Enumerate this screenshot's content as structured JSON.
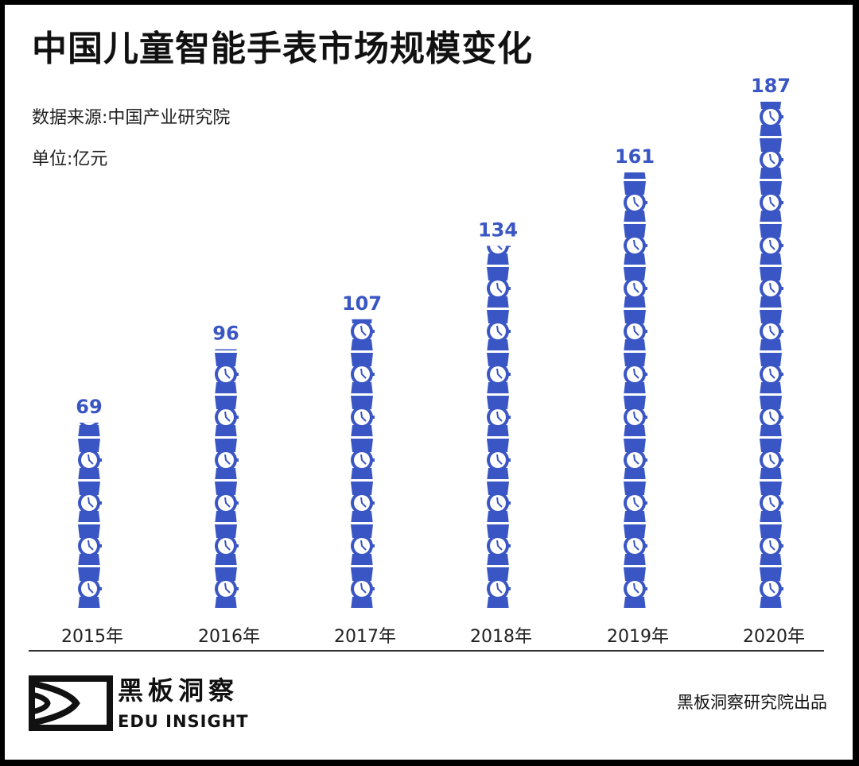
{
  "chart_data": {
    "type": "bar",
    "title": "中国儿童智能手表市场规模变化",
    "source": "数据来源:中国产业研究院",
    "unit": "单位:亿元",
    "categories": [
      "2015年",
      "2016年",
      "2017年",
      "2018年",
      "2019年",
      "2020年"
    ],
    "values": [
      69,
      96,
      107,
      134,
      161,
      187
    ],
    "value_labels": [
      "69",
      "96",
      "107",
      "134",
      "161",
      "187"
    ],
    "ylim": [
      0,
      187
    ],
    "color": "#3a56c4",
    "mark": "watch-icon-stack"
  },
  "footer": {
    "logo_cn": "黑板洞察",
    "logo_en": "EDU INSIGHT",
    "credit": "黑板洞察研究院出品"
  }
}
